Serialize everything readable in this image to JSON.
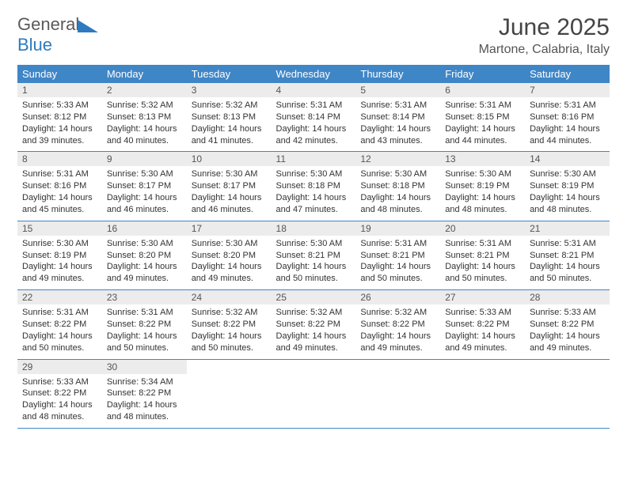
{
  "brand": {
    "part1": "General",
    "part2": "Blue"
  },
  "title": {
    "month": "June 2025",
    "location": "Martone, Calabria, Italy"
  },
  "colors": {
    "header_bg": "#3f86c7",
    "header_text": "#ffffff",
    "daynum_bg": "#ececec",
    "rule": "#3f86c7",
    "brand_gray": "#5a5a5a",
    "brand_blue": "#2f7abf"
  },
  "typography": {
    "title_fontsize": 30,
    "location_fontsize": 16,
    "dayheader_fontsize": 13,
    "daynum_fontsize": 12,
    "body_fontsize": 11
  },
  "layout": {
    "columns": 7,
    "rows": 5,
    "last_row_filled": 2
  },
  "day_headers": [
    "Sunday",
    "Monday",
    "Tuesday",
    "Wednesday",
    "Thursday",
    "Friday",
    "Saturday"
  ],
  "days": [
    {
      "n": 1,
      "sr": "5:33 AM",
      "ss": "8:12 PM",
      "dl": "14 hours and 39 minutes."
    },
    {
      "n": 2,
      "sr": "5:32 AM",
      "ss": "8:13 PM",
      "dl": "14 hours and 40 minutes."
    },
    {
      "n": 3,
      "sr": "5:32 AM",
      "ss": "8:13 PM",
      "dl": "14 hours and 41 minutes."
    },
    {
      "n": 4,
      "sr": "5:31 AM",
      "ss": "8:14 PM",
      "dl": "14 hours and 42 minutes."
    },
    {
      "n": 5,
      "sr": "5:31 AM",
      "ss": "8:14 PM",
      "dl": "14 hours and 43 minutes."
    },
    {
      "n": 6,
      "sr": "5:31 AM",
      "ss": "8:15 PM",
      "dl": "14 hours and 44 minutes."
    },
    {
      "n": 7,
      "sr": "5:31 AM",
      "ss": "8:16 PM",
      "dl": "14 hours and 44 minutes."
    },
    {
      "n": 8,
      "sr": "5:31 AM",
      "ss": "8:16 PM",
      "dl": "14 hours and 45 minutes."
    },
    {
      "n": 9,
      "sr": "5:30 AM",
      "ss": "8:17 PM",
      "dl": "14 hours and 46 minutes."
    },
    {
      "n": 10,
      "sr": "5:30 AM",
      "ss": "8:17 PM",
      "dl": "14 hours and 46 minutes."
    },
    {
      "n": 11,
      "sr": "5:30 AM",
      "ss": "8:18 PM",
      "dl": "14 hours and 47 minutes."
    },
    {
      "n": 12,
      "sr": "5:30 AM",
      "ss": "8:18 PM",
      "dl": "14 hours and 48 minutes."
    },
    {
      "n": 13,
      "sr": "5:30 AM",
      "ss": "8:19 PM",
      "dl": "14 hours and 48 minutes."
    },
    {
      "n": 14,
      "sr": "5:30 AM",
      "ss": "8:19 PM",
      "dl": "14 hours and 48 minutes."
    },
    {
      "n": 15,
      "sr": "5:30 AM",
      "ss": "8:19 PM",
      "dl": "14 hours and 49 minutes."
    },
    {
      "n": 16,
      "sr": "5:30 AM",
      "ss": "8:20 PM",
      "dl": "14 hours and 49 minutes."
    },
    {
      "n": 17,
      "sr": "5:30 AM",
      "ss": "8:20 PM",
      "dl": "14 hours and 49 minutes."
    },
    {
      "n": 18,
      "sr": "5:30 AM",
      "ss": "8:21 PM",
      "dl": "14 hours and 50 minutes."
    },
    {
      "n": 19,
      "sr": "5:31 AM",
      "ss": "8:21 PM",
      "dl": "14 hours and 50 minutes."
    },
    {
      "n": 20,
      "sr": "5:31 AM",
      "ss": "8:21 PM",
      "dl": "14 hours and 50 minutes."
    },
    {
      "n": 21,
      "sr": "5:31 AM",
      "ss": "8:21 PM",
      "dl": "14 hours and 50 minutes."
    },
    {
      "n": 22,
      "sr": "5:31 AM",
      "ss": "8:22 PM",
      "dl": "14 hours and 50 minutes."
    },
    {
      "n": 23,
      "sr": "5:31 AM",
      "ss": "8:22 PM",
      "dl": "14 hours and 50 minutes."
    },
    {
      "n": 24,
      "sr": "5:32 AM",
      "ss": "8:22 PM",
      "dl": "14 hours and 50 minutes."
    },
    {
      "n": 25,
      "sr": "5:32 AM",
      "ss": "8:22 PM",
      "dl": "14 hours and 49 minutes."
    },
    {
      "n": 26,
      "sr": "5:32 AM",
      "ss": "8:22 PM",
      "dl": "14 hours and 49 minutes."
    },
    {
      "n": 27,
      "sr": "5:33 AM",
      "ss": "8:22 PM",
      "dl": "14 hours and 49 minutes."
    },
    {
      "n": 28,
      "sr": "5:33 AM",
      "ss": "8:22 PM",
      "dl": "14 hours and 49 minutes."
    },
    {
      "n": 29,
      "sr": "5:33 AM",
      "ss": "8:22 PM",
      "dl": "14 hours and 48 minutes."
    },
    {
      "n": 30,
      "sr": "5:34 AM",
      "ss": "8:22 PM",
      "dl": "14 hours and 48 minutes."
    }
  ],
  "labels": {
    "sunrise": "Sunrise:",
    "sunset": "Sunset:",
    "daylight": "Daylight:"
  }
}
